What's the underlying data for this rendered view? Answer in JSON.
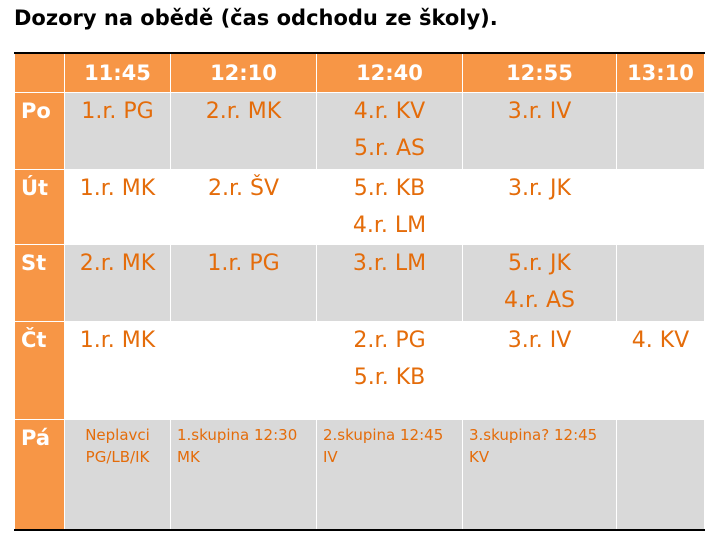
{
  "header": {
    "title": "Dozory na obědě (čas odchodu ze školy)."
  },
  "table": {
    "columns": [
      "11:45",
      "12:10",
      "12:40",
      "12:55",
      "13:10"
    ],
    "rows": [
      {
        "day": "Po",
        "cells": [
          [
            "1.r. PG"
          ],
          [
            "2.r. MK"
          ],
          [
            "4.r. KV",
            "5.r. AS"
          ],
          [
            "3.r. IV"
          ],
          []
        ]
      },
      {
        "day": "Út",
        "cells": [
          [
            "1.r. MK"
          ],
          [
            "2.r. ŠV"
          ],
          [
            "5.r. KB",
            "4.r. LM"
          ],
          [
            "3.r. JK"
          ],
          []
        ]
      },
      {
        "day": "St",
        "cells": [
          [
            "2.r. MK"
          ],
          [
            "1.r. PG"
          ],
          [
            "3.r. LM"
          ],
          [
            "5.r. JK",
            "4.r. AS"
          ],
          []
        ]
      },
      {
        "day": "Čt",
        "cells": [
          [
            "1.r. MK"
          ],
          [],
          [
            "2.r. PG",
            "5.r. KB"
          ],
          [
            "3.r. IV"
          ],
          [
            "4. KV"
          ]
        ]
      },
      {
        "day": "Pá",
        "cells": [
          [
            "Neplavci",
            "PG/LB/IK"
          ],
          [
            "1.skupina 12:30",
            "MK"
          ],
          [
            "2.skupina 12:45",
            "IV"
          ],
          [
            "3.skupina? 12:45",
            "KV"
          ],
          []
        ]
      }
    ]
  }
}
